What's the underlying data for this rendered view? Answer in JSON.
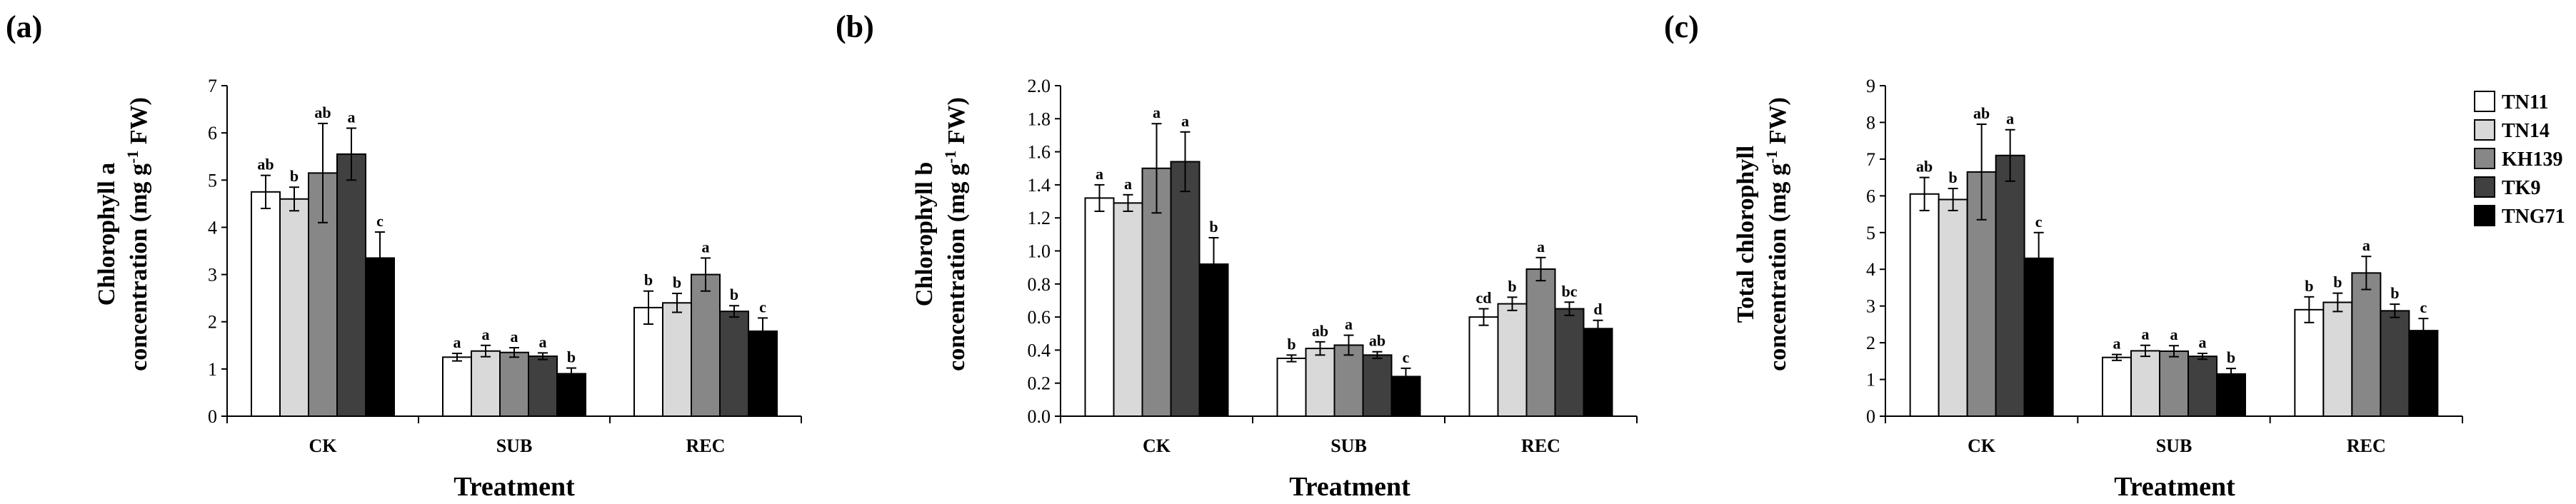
{
  "legend": {
    "entries": [
      {
        "name": "TN11",
        "color": "#ffffff"
      },
      {
        "name": "TN14",
        "color": "#d9d9d9"
      },
      {
        "name": "KH139",
        "color": "#878787"
      },
      {
        "name": "TK9",
        "color": "#404040"
      },
      {
        "name": "TNG71",
        "color": "#000000"
      }
    ]
  },
  "chart_data": [
    {
      "type": "bar",
      "panel_label": "(a)",
      "ylabel_line1": "Chlorophyll a",
      "ylabel_line2_main": "concentration (mg g",
      "ylabel_line2_sup": "-1",
      "ylabel_line2_end": " FW)",
      "xlabel": "Treatment",
      "categories": [
        "CK",
        "SUB",
        "REC"
      ],
      "ylim": [
        0,
        7
      ],
      "yticks": [
        "0",
        "1",
        "2",
        "3",
        "4",
        "5",
        "6",
        "7"
      ],
      "series": [
        {
          "name": "TN11",
          "values": [
            4.75,
            1.25,
            2.3
          ],
          "errors": [
            0.35,
            0.08,
            0.35
          ],
          "letters": [
            "ab",
            "a",
            "b"
          ]
        },
        {
          "name": "TN14",
          "values": [
            4.6,
            1.38,
            2.4
          ],
          "errors": [
            0.25,
            0.12,
            0.2
          ],
          "letters": [
            "b",
            "a",
            "b"
          ]
        },
        {
          "name": "KH139",
          "values": [
            5.15,
            1.35,
            3.0
          ],
          "errors": [
            1.05,
            0.1,
            0.35
          ],
          "letters": [
            "ab",
            "a",
            "a"
          ]
        },
        {
          "name": "TK9",
          "values": [
            5.55,
            1.27,
            2.22
          ],
          "errors": [
            0.55,
            0.07,
            0.12
          ],
          "letters": [
            "a",
            "a",
            "b"
          ]
        },
        {
          "name": "TNG71",
          "values": [
            3.35,
            0.9,
            1.8
          ],
          "errors": [
            0.55,
            0.12,
            0.28
          ],
          "letters": [
            "c",
            "b",
            "c"
          ]
        }
      ]
    },
    {
      "type": "bar",
      "panel_label": "(b)",
      "ylabel_line1": "Chlorophyll b",
      "ylabel_line2_main": "concentration (mg g",
      "ylabel_line2_sup": "-1",
      "ylabel_line2_end": " FW)",
      "xlabel": "Treatment",
      "categories": [
        "CK",
        "SUB",
        "REC"
      ],
      "ylim": [
        0,
        2.0
      ],
      "yticks": [
        "0.0",
        "0.2",
        "0.4",
        "0.6",
        "0.8",
        "1.0",
        "1.2",
        "1.4",
        "1.6",
        "1.8",
        "2.0"
      ],
      "series": [
        {
          "name": "TN11",
          "values": [
            1.32,
            0.35,
            0.6
          ],
          "errors": [
            0.08,
            0.02,
            0.05
          ],
          "letters": [
            "a",
            "b",
            "cd"
          ]
        },
        {
          "name": "TN14",
          "values": [
            1.29,
            0.41,
            0.68
          ],
          "errors": [
            0.05,
            0.04,
            0.04
          ],
          "letters": [
            "a",
            "ab",
            "b"
          ]
        },
        {
          "name": "KH139",
          "values": [
            1.5,
            0.43,
            0.89
          ],
          "errors": [
            0.27,
            0.06,
            0.07
          ],
          "letters": [
            "a",
            "a",
            "a"
          ]
        },
        {
          "name": "TK9",
          "values": [
            1.54,
            0.37,
            0.65
          ],
          "errors": [
            0.18,
            0.02,
            0.04
          ],
          "letters": [
            "a",
            "ab",
            "bc"
          ]
        },
        {
          "name": "TNG71",
          "values": [
            0.92,
            0.24,
            0.53
          ],
          "errors": [
            0.16,
            0.05,
            0.05
          ],
          "letters": [
            "b",
            "c",
            "d"
          ]
        }
      ]
    },
    {
      "type": "bar",
      "panel_label": "(c)",
      "ylabel_line1": "Total chlorophyll",
      "ylabel_line2_main": "concentration (mg g",
      "ylabel_line2_sup": "-1",
      "ylabel_line2_end": " FW)",
      "xlabel": "Treatment",
      "categories": [
        "CK",
        "SUB",
        "REC"
      ],
      "ylim": [
        0,
        9
      ],
      "yticks": [
        "0",
        "1",
        "2",
        "3",
        "4",
        "5",
        "6",
        "7",
        "8",
        "9"
      ],
      "series": [
        {
          "name": "TN11",
          "values": [
            6.05,
            1.6,
            2.9
          ],
          "errors": [
            0.45,
            0.08,
            0.35
          ],
          "letters": [
            "ab",
            "a",
            "b"
          ]
        },
        {
          "name": "TN14",
          "values": [
            5.9,
            1.78,
            3.1
          ],
          "errors": [
            0.3,
            0.15,
            0.25
          ],
          "letters": [
            "b",
            "a",
            "b"
          ]
        },
        {
          "name": "KH139",
          "values": [
            6.65,
            1.77,
            3.9
          ],
          "errors": [
            1.3,
            0.15,
            0.45
          ],
          "letters": [
            "ab",
            "a",
            "a"
          ]
        },
        {
          "name": "TK9",
          "values": [
            7.1,
            1.63,
            2.87
          ],
          "errors": [
            0.7,
            0.08,
            0.18
          ],
          "letters": [
            "a",
            "a",
            "b"
          ]
        },
        {
          "name": "TNG71",
          "values": [
            4.3,
            1.15,
            2.33
          ],
          "errors": [
            0.7,
            0.15,
            0.33
          ],
          "letters": [
            "c",
            "b",
            "c"
          ]
        }
      ]
    }
  ]
}
